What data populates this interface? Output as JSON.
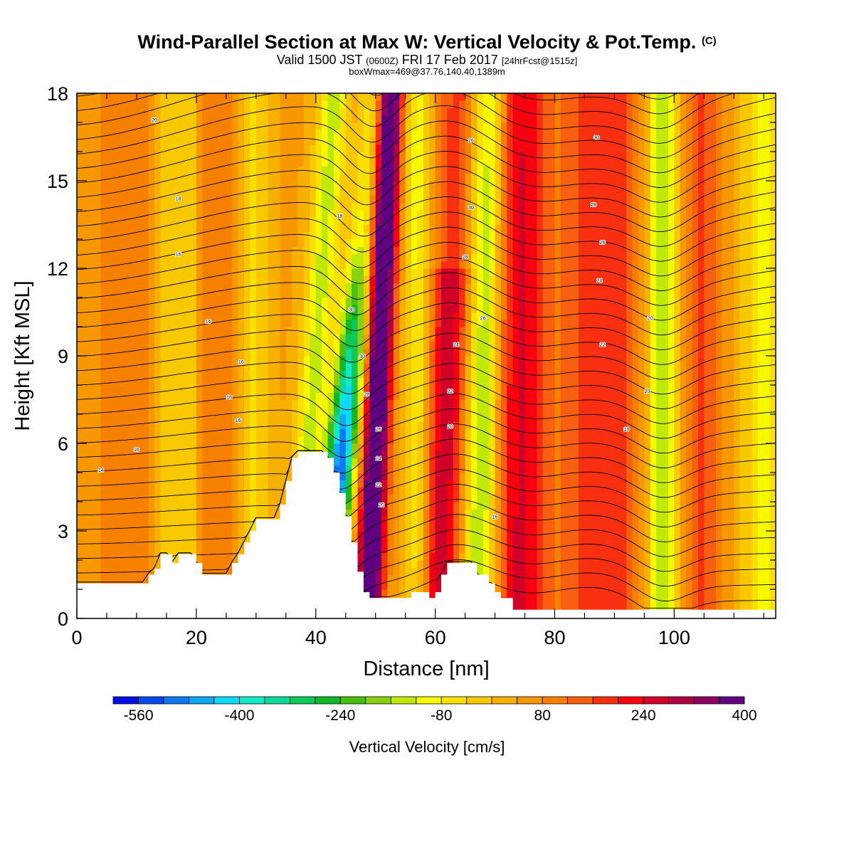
{
  "header": {
    "title": "Wind-Parallel Section at Max W: Vertical Velocity & Pot.Temp.",
    "copyright": "(C)",
    "valid_prefix": "Valid 1500 JST",
    "valid_zulu": "(0600Z)",
    "valid_date": "FRI 17 Feb 2017",
    "forecast": "[24hrFcst@1515z]",
    "boxinfo": "boxWmax=469@37.76,140.40,1389m"
  },
  "chart_data": {
    "type": "heatmap",
    "xlabel": "Distance [nm]",
    "ylabel": "Height [Kft MSL]",
    "xlim": [
      0,
      117
    ],
    "ylim": [
      0,
      18
    ],
    "x_ticks": [
      "0",
      "20",
      "40",
      "60",
      "80",
      "100"
    ],
    "y_ticks": [
      "0",
      "3",
      "6",
      "9",
      "12",
      "15",
      "18"
    ],
    "colorbar": {
      "label": "Vertical Velocity [cm/s]",
      "tick_labels": [
        "-560",
        "-400",
        "-240",
        "-80",
        "80",
        "240",
        "400"
      ],
      "colors": [
        "#0010e8",
        "#0848f0",
        "#1078f0",
        "#10a8f0",
        "#10d8f8",
        "#10e8c8",
        "#10d898",
        "#10c858",
        "#10b828",
        "#48c010",
        "#88d010",
        "#c0e808",
        "#f8f800",
        "#f8e000",
        "#f8c800",
        "#f8b000",
        "#f89800",
        "#f88000",
        "#f86010",
        "#f83010",
        "#f80010",
        "#d00028",
        "#b00040",
        "#900060",
        "#600080"
      ]
    },
    "w_features": [
      {
        "x": 50,
        "w": 470,
        "type": "updraft-core"
      },
      {
        "x": 44,
        "w": -560,
        "type": "downdraft-core"
      },
      {
        "x": 62,
        "w": 280,
        "type": "updraft"
      },
      {
        "x": 68,
        "w": -240,
        "type": "downdraft"
      },
      {
        "x": 98,
        "w": -240,
        "type": "downdraft"
      },
      {
        "x": 88,
        "w": 160,
        "type": "updraft"
      }
    ],
    "theta_contour_labels": [
      "14",
      "16",
      "16",
      "18",
      "16",
      "16",
      "16",
      "18",
      "20",
      "20",
      "22",
      "24",
      "26",
      "28",
      "30",
      "30",
      "18",
      "20",
      "22",
      "24",
      "26",
      "28",
      "30",
      "26",
      "20",
      "16",
      "18",
      "20",
      "22",
      "24",
      "26",
      "28",
      "30"
    ],
    "terrain_kft": [
      [
        0,
        1.2
      ],
      [
        11,
        1.2
      ],
      [
        12,
        1.5
      ],
      [
        13,
        1.7
      ],
      [
        14,
        2.2
      ],
      [
        15,
        2.2
      ],
      [
        16,
        1.9
      ],
      [
        17,
        2.2
      ],
      [
        19,
        2.2
      ],
      [
        20,
        1.9
      ],
      [
        21,
        1.5
      ],
      [
        25,
        1.5
      ],
      [
        26,
        1.9
      ],
      [
        27,
        2.2
      ],
      [
        28,
        2.6
      ],
      [
        29,
        3.0
      ],
      [
        30,
        3.4
      ],
      [
        33,
        3.4
      ],
      [
        34,
        3.9
      ],
      [
        35,
        4.7
      ],
      [
        36,
        5.5
      ],
      [
        37,
        5.7
      ],
      [
        41,
        5.7
      ],
      [
        42,
        5.5
      ],
      [
        43,
        5.0
      ],
      [
        44,
        4.3
      ],
      [
        45,
        3.5
      ],
      [
        46,
        2.6
      ],
      [
        47,
        1.6
      ],
      [
        48,
        0.9
      ],
      [
        49,
        0.7
      ],
      [
        55,
        0.7
      ],
      [
        56,
        0.9
      ],
      [
        58,
        0.9
      ],
      [
        59,
        0.7
      ],
      [
        60,
        0.9
      ],
      [
        61,
        1.5
      ],
      [
        62,
        1.9
      ],
      [
        66,
        1.9
      ],
      [
        67,
        1.5
      ],
      [
        69,
        1.2
      ],
      [
        70,
        0.9
      ],
      [
        71,
        0.7
      ],
      [
        73,
        0.3
      ],
      [
        117,
        0.3
      ]
    ]
  }
}
